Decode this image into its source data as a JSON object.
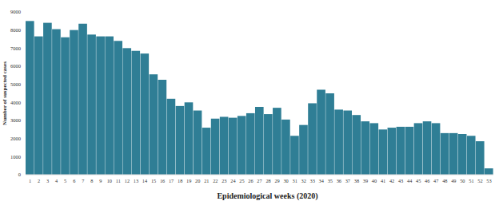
{
  "chart_data": {
    "type": "bar",
    "x_label": "Epidemiological weeks (2020)",
    "y_label": "Number of suspected cases",
    "categories": [
      "1",
      "2",
      "3",
      "4",
      "5",
      "6",
      "7",
      "8",
      "9",
      "10",
      "11",
      "12",
      "13",
      "14",
      "15",
      "16",
      "17",
      "18",
      "19",
      "20",
      "21",
      "22",
      "23",
      "24",
      "25",
      "26",
      "27",
      "28",
      "29",
      "30",
      "31",
      "32",
      "33",
      "34",
      "35",
      "36",
      "37",
      "38",
      "39",
      "40",
      "41",
      "42",
      "43",
      "44",
      "45",
      "46",
      "47",
      "48",
      "49",
      "50",
      "51",
      "52",
      "53"
    ],
    "values": [
      8500,
      7650,
      8400,
      8050,
      7600,
      8000,
      8350,
      7750,
      7650,
      7650,
      7400,
      7000,
      6850,
      6700,
      5550,
      5250,
      4200,
      3800,
      4000,
      3550,
      2600,
      3100,
      3200,
      3150,
      3250,
      3400,
      3750,
      3350,
      3700,
      3050,
      2150,
      2750,
      3950,
      4700,
      4500,
      3600,
      3550,
      3300,
      2950,
      2850,
      2500,
      2600,
      2650,
      2650,
      2850,
      2950,
      2850,
      2300,
      2300,
      2250,
      2150,
      1850,
      350
    ],
    "color": "#2f7e95",
    "ylim": [
      0,
      9000
    ],
    "yticks": [
      0,
      1000,
      2000,
      3000,
      4000,
      5000,
      6000,
      7000,
      8000,
      9000
    ],
    "grid": false
  }
}
